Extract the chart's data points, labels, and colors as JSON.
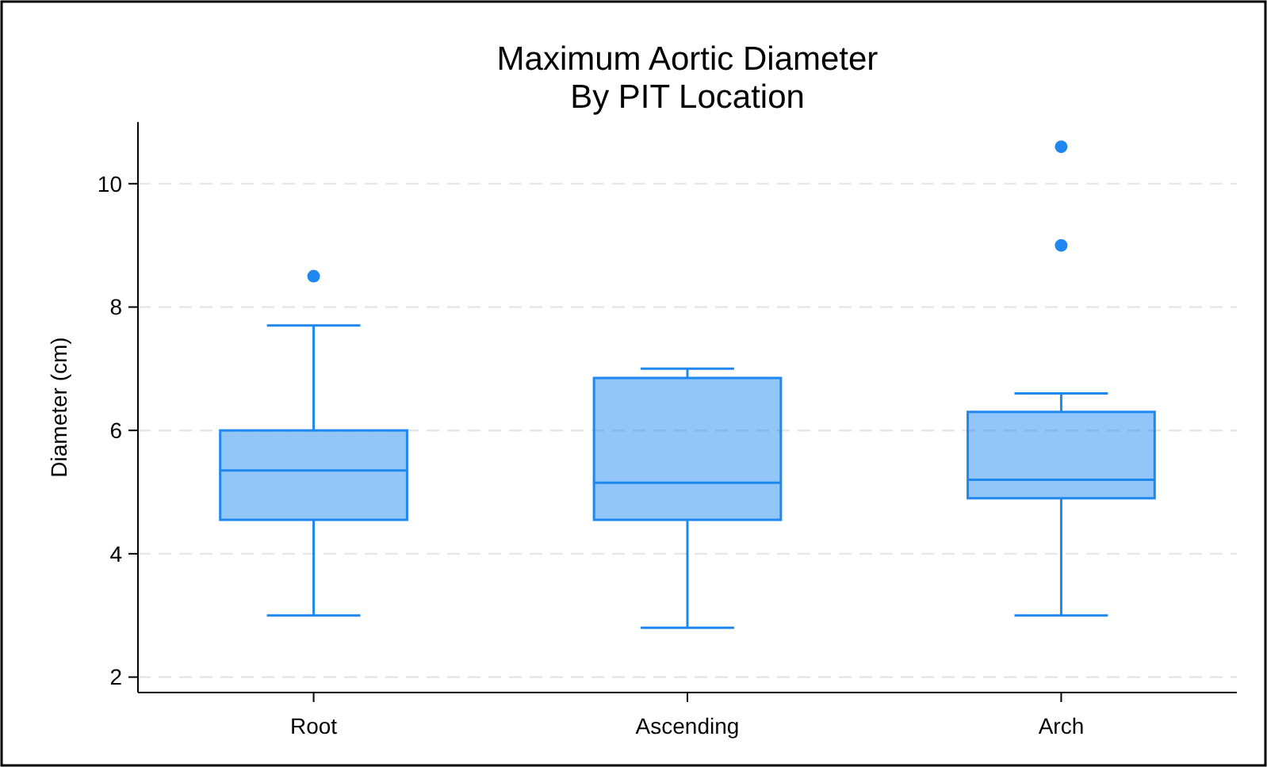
{
  "chart_data": {
    "type": "box",
    "title": "Maximum Aortic Diameter\nBy PIT Location",
    "ylabel": "Diameter (cm)",
    "categories": [
      "Root",
      "Ascending",
      "Arch"
    ],
    "boxes": [
      {
        "low": 3.0,
        "q1": 4.55,
        "median": 5.35,
        "q3": 6.0,
        "high": 7.7,
        "outliers": [
          8.5
        ]
      },
      {
        "low": 2.8,
        "q1": 4.55,
        "median": 5.15,
        "q3": 6.85,
        "high": 7.0
      },
      {
        "low": 3.0,
        "q1": 4.9,
        "median": 5.2,
        "q3": 6.3,
        "high": 6.6,
        "outliers": [
          9.0,
          10.6
        ]
      }
    ],
    "color": "#1e88f0",
    "ylim": [
      1.75,
      11
    ],
    "yticks": [
      2,
      4,
      6,
      8,
      10
    ],
    "grid": "y",
    "line_style": "dashed"
  }
}
